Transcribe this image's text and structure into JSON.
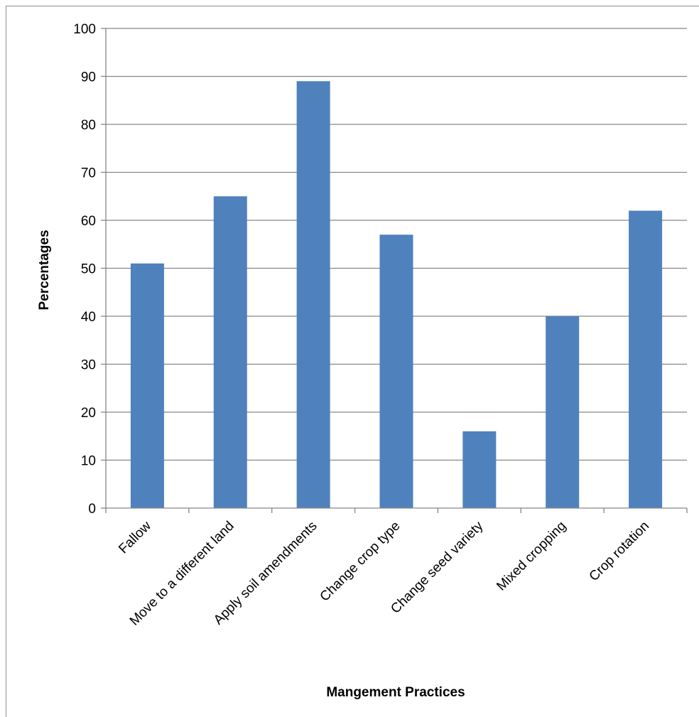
{
  "chart_data": {
    "type": "bar",
    "categories": [
      "Fallow",
      "Move to a different land",
      "Apply soil amendments",
      "Change crop type",
      "Change seed variety",
      "Mixed cropping",
      "Crop rotation"
    ],
    "values": [
      51,
      65,
      89,
      57,
      16,
      40,
      62
    ],
    "xlabel": "Mangement Practices",
    "ylabel": "Percentages",
    "ylim": [
      0,
      100
    ],
    "yticks": [
      0,
      10,
      20,
      30,
      40,
      50,
      60,
      70,
      80,
      90,
      100
    ],
    "grid": true,
    "bar_color": "#4f81bd",
    "grid_color": "#868686"
  }
}
